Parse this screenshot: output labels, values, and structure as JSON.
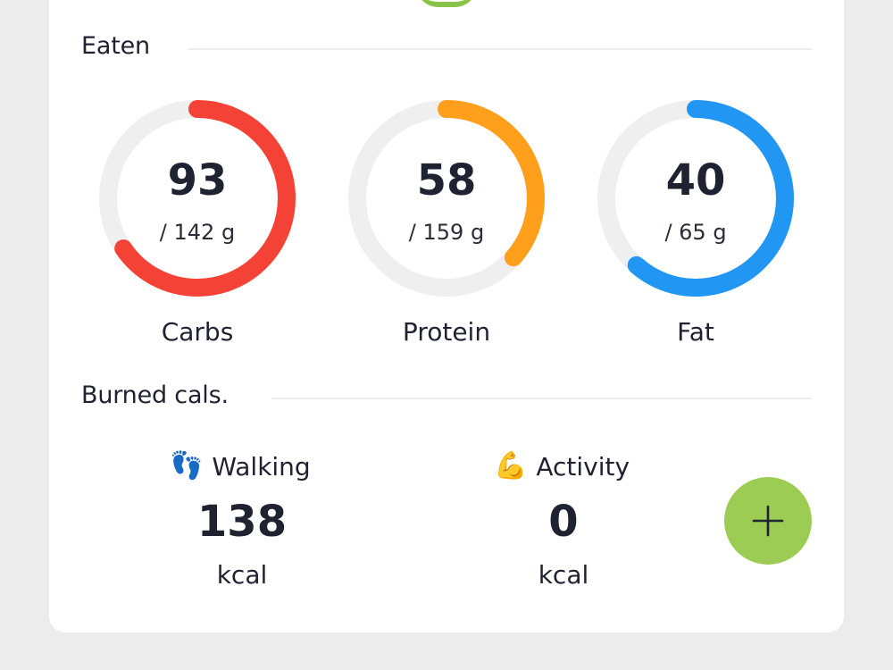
{
  "eaten": {
    "title": "Eaten",
    "macros": [
      {
        "label": "Carbs",
        "value": "93",
        "target": "/ 142 g",
        "fraction": 0.655,
        "color": "#f44336"
      },
      {
        "label": "Protein",
        "value": "58",
        "target": "/ 159 g",
        "fraction": 0.365,
        "color": "#ff9f1c"
      },
      {
        "label": "Fat",
        "value": "40",
        "target": "/ 65 g",
        "fraction": 0.615,
        "color": "#2196f3"
      }
    ]
  },
  "burned": {
    "title": "Burned cals.",
    "walking": {
      "icon": "footprints-icon",
      "emoji": "👣",
      "label": "Walking",
      "value": "138",
      "unit": "kcal"
    },
    "activity": {
      "icon": "flexed-biceps-icon",
      "emoji": "💪",
      "label": "Activity",
      "value": "0",
      "unit": "kcal"
    }
  },
  "add_button": {
    "icon": "plus-icon",
    "color": "#9ccc54"
  }
}
